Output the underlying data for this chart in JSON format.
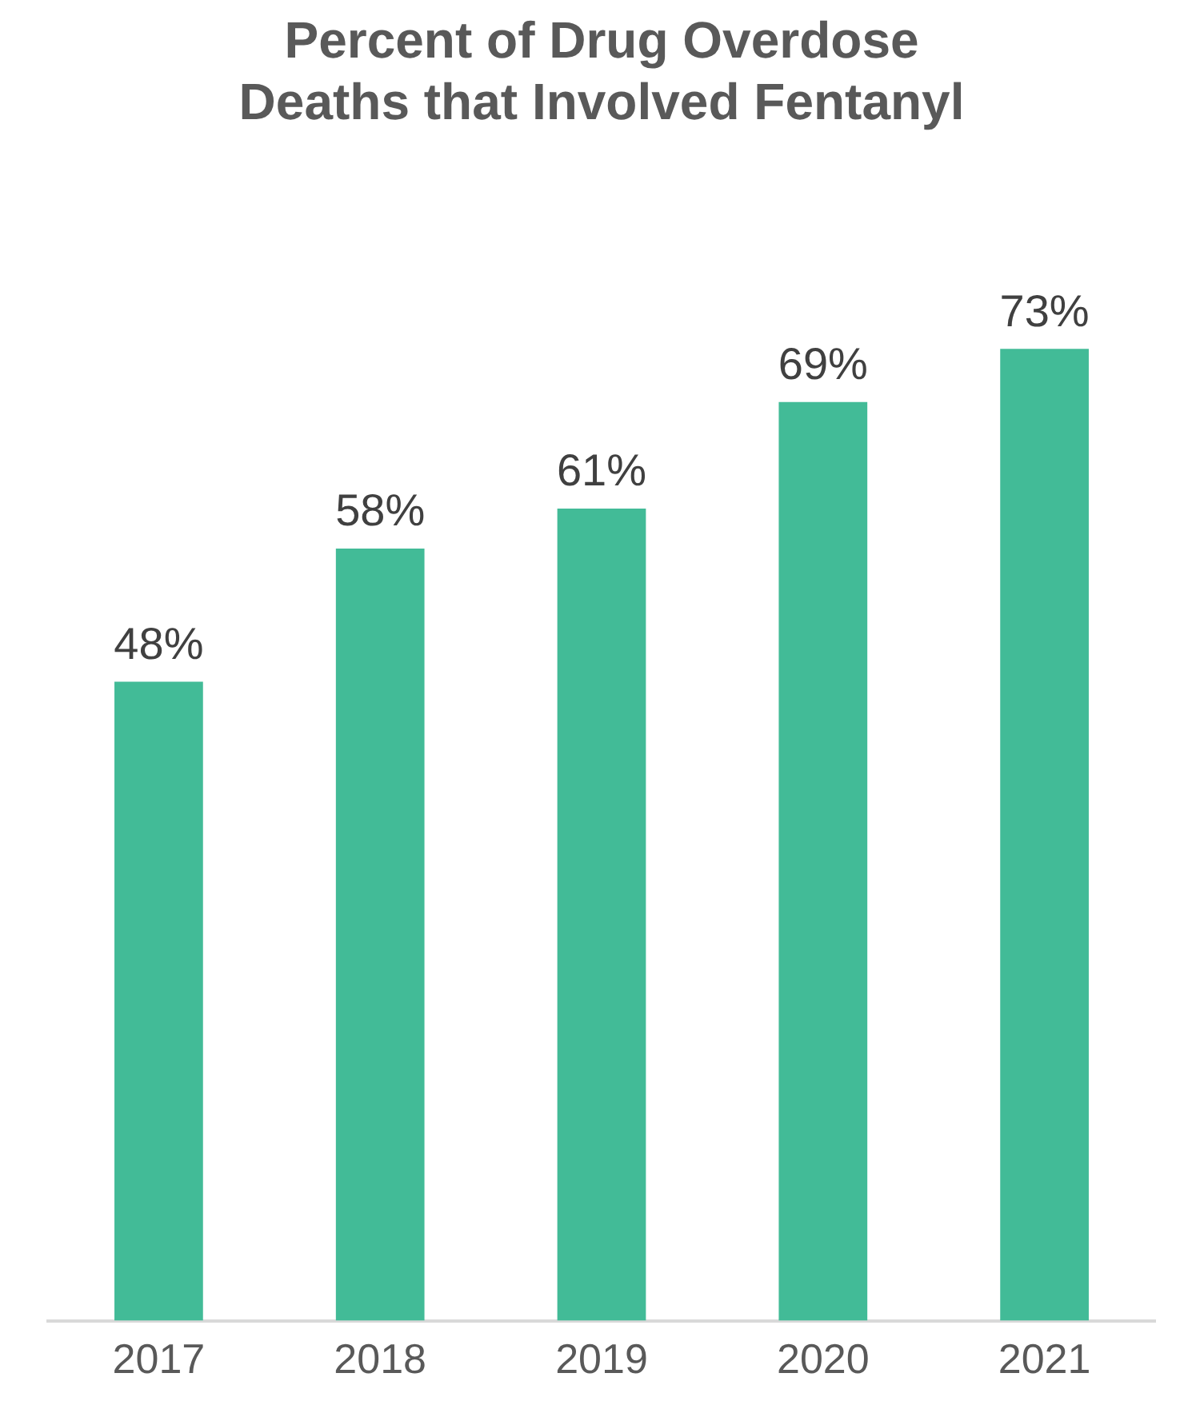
{
  "chart_data": {
    "type": "bar",
    "title": "Percent of Drug Overdose\nDeaths that Involved Fentanyl",
    "categories": [
      "2017",
      "2018",
      "2019",
      "2020",
      "2021"
    ],
    "values": [
      48,
      58,
      61,
      69,
      73
    ],
    "value_labels": [
      "48%",
      "58%",
      "61%",
      "69%",
      "73%"
    ],
    "color": "#42bb97",
    "grid": false,
    "legend": false
  }
}
